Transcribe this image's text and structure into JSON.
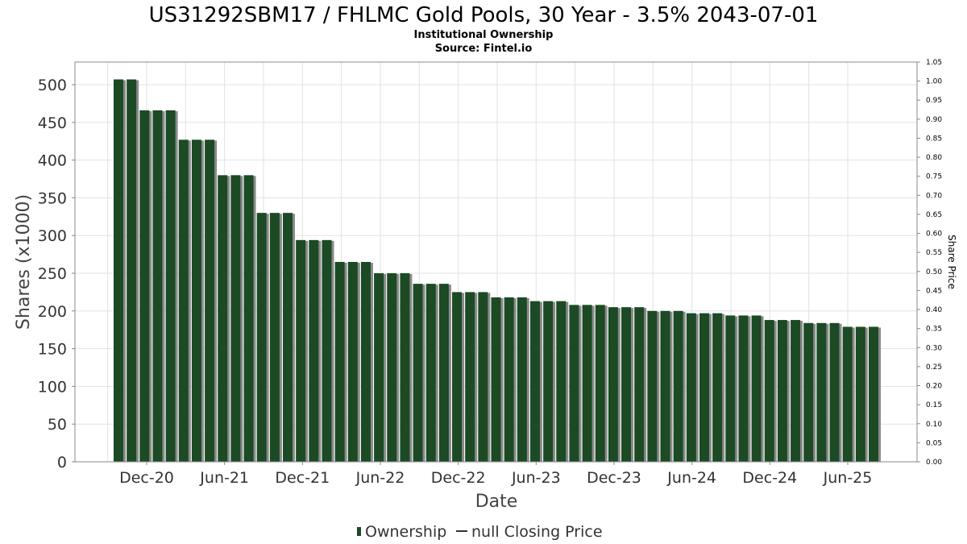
{
  "chart_data": {
    "type": "bar",
    "title": "US31292SBM17 / FHLMC Gold Pools, 30 Year - 3.5% 2043-07-01",
    "subtitle_lines": [
      "Institutional Ownership",
      "Source: Fintel.io"
    ],
    "xlabel": "Date",
    "ylabel": "Shares (x1000)",
    "y2label": "Share Price",
    "ylim": [
      0,
      530
    ],
    "y_ticks": [
      "0",
      "50",
      "100",
      "150",
      "200",
      "250",
      "300",
      "350",
      "400",
      "450",
      "500"
    ],
    "y2lim": [
      0,
      1.05
    ],
    "y2_ticks": [
      "0.00",
      "0.05",
      "0.10",
      "0.15",
      "0.20",
      "0.25",
      "0.30",
      "0.35",
      "0.40",
      "0.45",
      "0.50",
      "0.55",
      "0.60",
      "0.65",
      "0.70",
      "0.75",
      "0.80",
      "0.85",
      "0.90",
      "0.95",
      "1.00",
      "1.05"
    ],
    "x_tick_labels": [
      "Dec-20",
      "Jun-21",
      "Dec-21",
      "Jun-22",
      "Dec-22",
      "Jun-23",
      "Dec-23",
      "Jun-24",
      "Dec-24",
      "Jun-25"
    ],
    "grid": true,
    "colors": {
      "bar": "#1b4a24",
      "bar_shadow": "#8a8a8a",
      "grid": "#e2e2e2",
      "frame": "#888888"
    },
    "series": [
      {
        "name": "Ownership",
        "values": [
          507,
          507,
          466,
          466,
          466,
          427,
          427,
          427,
          380,
          380,
          380,
          330,
          330,
          330,
          294,
          294,
          294,
          265,
          265,
          265,
          250,
          250,
          250,
          236,
          236,
          236,
          225,
          225,
          225,
          218,
          218,
          218,
          213,
          213,
          213,
          208,
          208,
          208,
          205,
          205,
          205,
          200,
          200,
          200,
          197,
          197,
          197,
          194,
          194,
          194,
          188,
          188,
          188,
          184,
          184,
          184,
          179,
          179,
          179
        ]
      }
    ],
    "legend": {
      "position": "bottom-center",
      "items": [
        {
          "label": "Ownership",
          "marker": "bar"
        },
        {
          "label": "null Closing Price",
          "marker": "line"
        }
      ]
    }
  }
}
